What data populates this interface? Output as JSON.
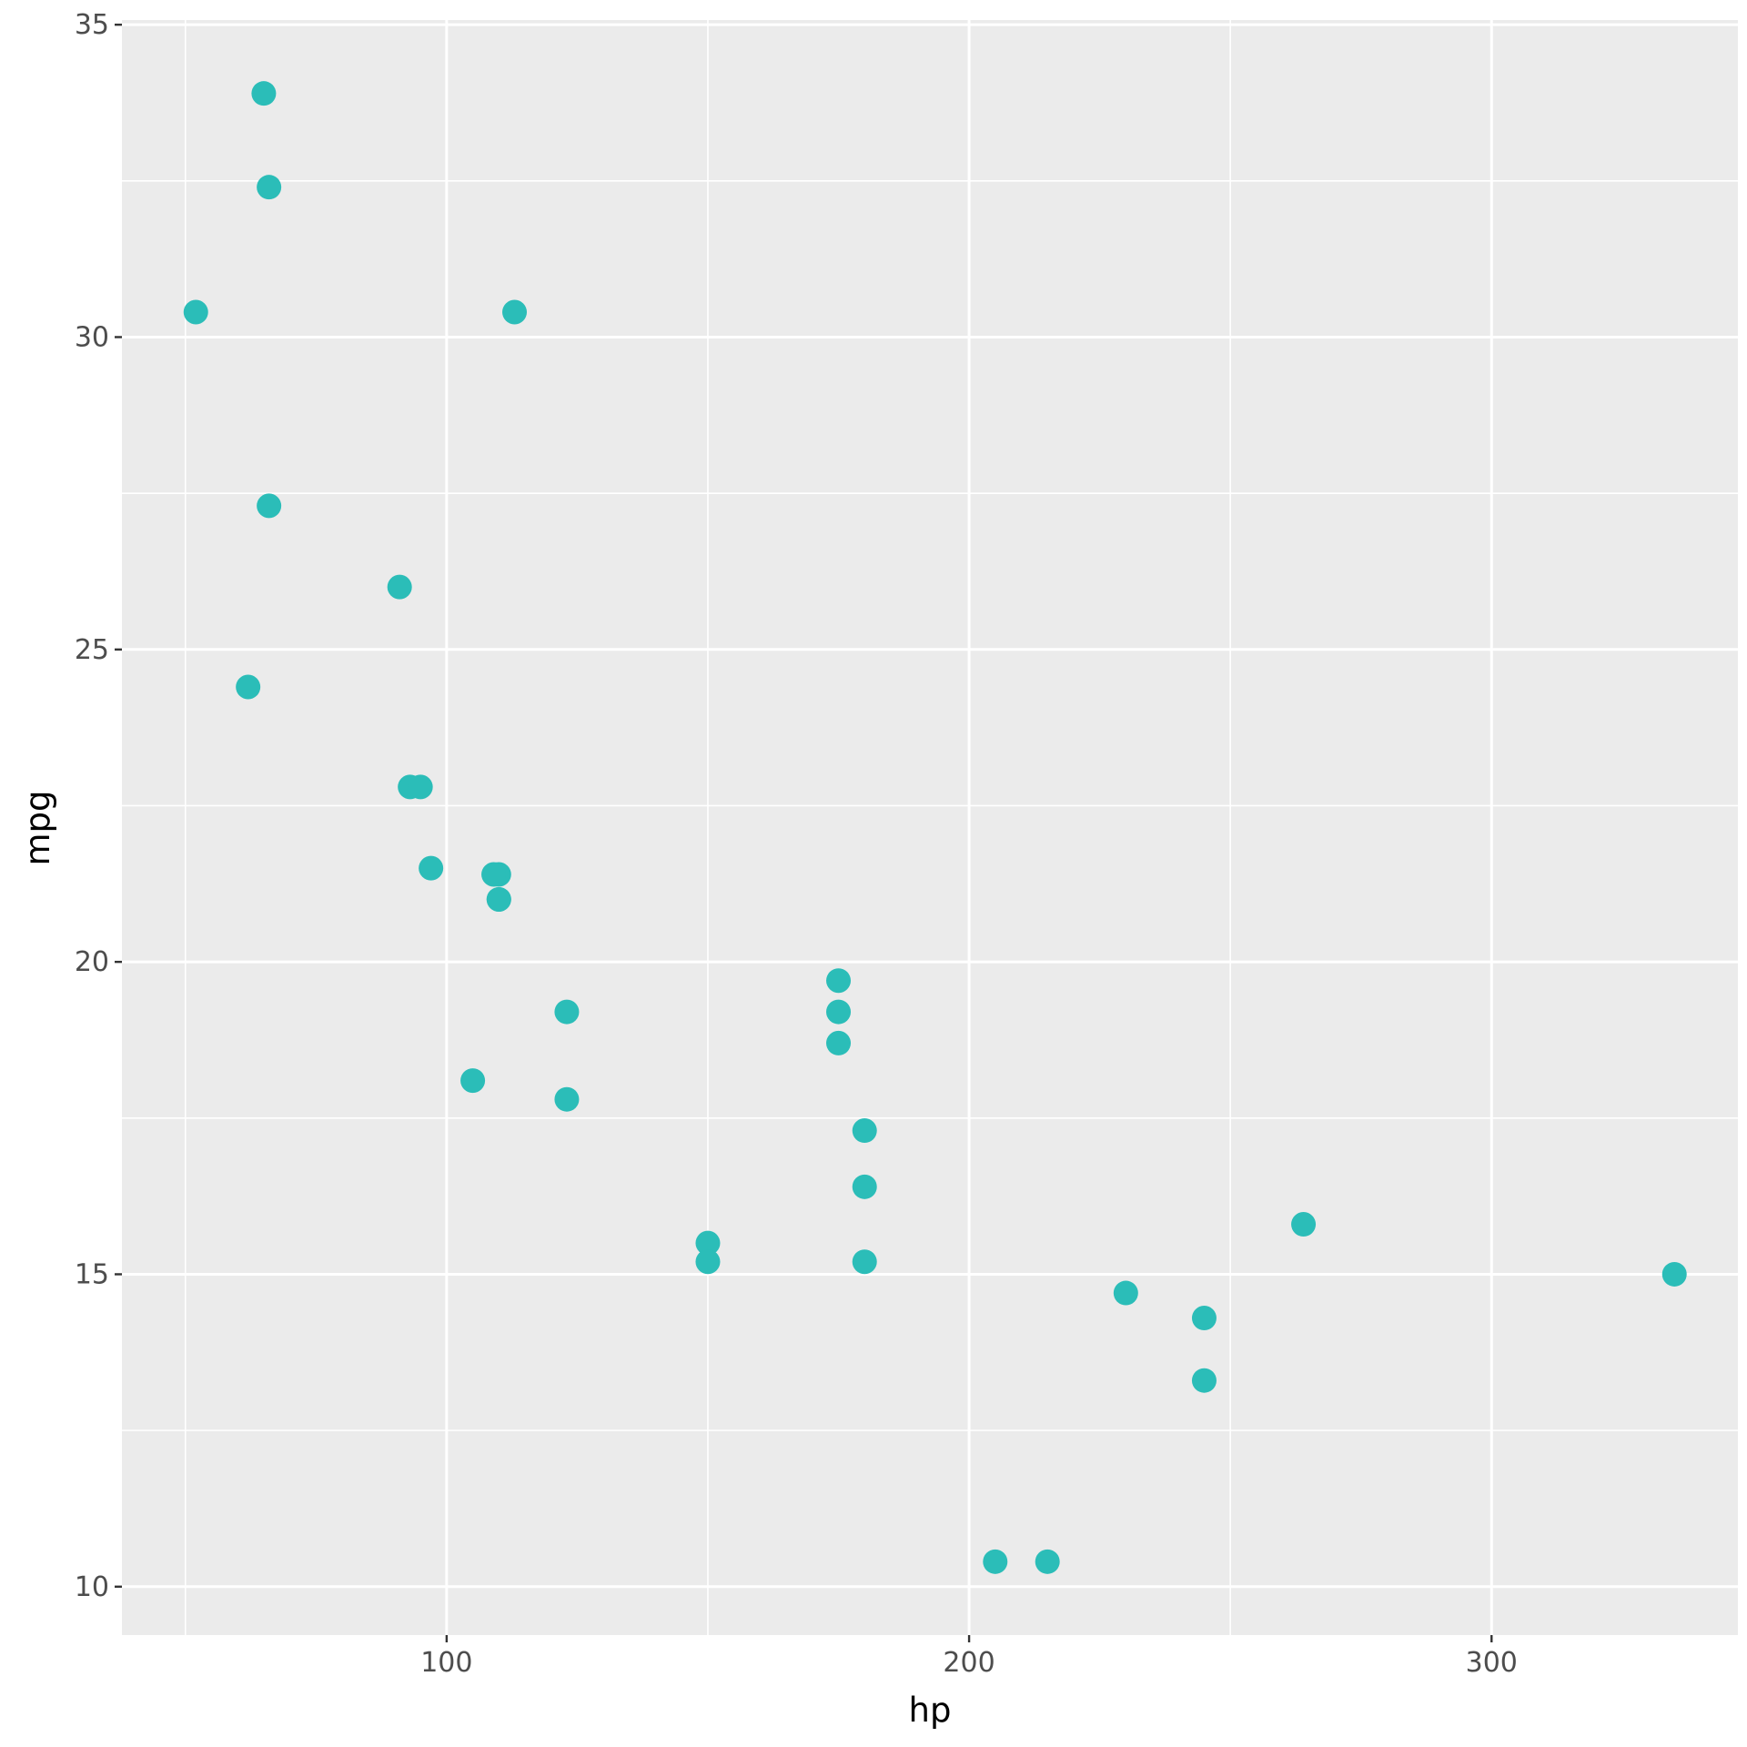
{
  "chart_data": {
    "type": "scatter",
    "xlabel": "hp",
    "ylabel": "mpg",
    "xlim": [
      37.85,
      347.15
    ],
    "ylim": [
      9.225,
      35.075
    ],
    "x_ticks": [
      100,
      200,
      300
    ],
    "y_ticks": [
      10,
      15,
      20,
      25,
      30,
      35
    ],
    "grid": true,
    "point_color": "#2BBDB8",
    "panel_color": "#EBEBEB",
    "points": [
      {
        "x": 110,
        "y": 21.0
      },
      {
        "x": 110,
        "y": 21.0
      },
      {
        "x": 93,
        "y": 22.8
      },
      {
        "x": 110,
        "y": 21.4
      },
      {
        "x": 175,
        "y": 18.7
      },
      {
        "x": 105,
        "y": 18.1
      },
      {
        "x": 245,
        "y": 14.3
      },
      {
        "x": 62,
        "y": 24.4
      },
      {
        "x": 95,
        "y": 22.8
      },
      {
        "x": 123,
        "y": 19.2
      },
      {
        "x": 123,
        "y": 17.8
      },
      {
        "x": 180,
        "y": 16.4
      },
      {
        "x": 180,
        "y": 17.3
      },
      {
        "x": 180,
        "y": 15.2
      },
      {
        "x": 205,
        "y": 10.4
      },
      {
        "x": 215,
        "y": 10.4
      },
      {
        "x": 230,
        "y": 14.7
      },
      {
        "x": 66,
        "y": 32.4
      },
      {
        "x": 52,
        "y": 30.4
      },
      {
        "x": 65,
        "y": 33.9
      },
      {
        "x": 97,
        "y": 21.5
      },
      {
        "x": 150,
        "y": 15.5
      },
      {
        "x": 150,
        "y": 15.2
      },
      {
        "x": 245,
        "y": 13.3
      },
      {
        "x": 175,
        "y": 19.2
      },
      {
        "x": 66,
        "y": 27.3
      },
      {
        "x": 91,
        "y": 26.0
      },
      {
        "x": 113,
        "y": 30.4
      },
      {
        "x": 264,
        "y": 15.8
      },
      {
        "x": 175,
        "y": 19.7
      },
      {
        "x": 335,
        "y": 15.0
      },
      {
        "x": 109,
        "y": 21.4
      }
    ]
  }
}
